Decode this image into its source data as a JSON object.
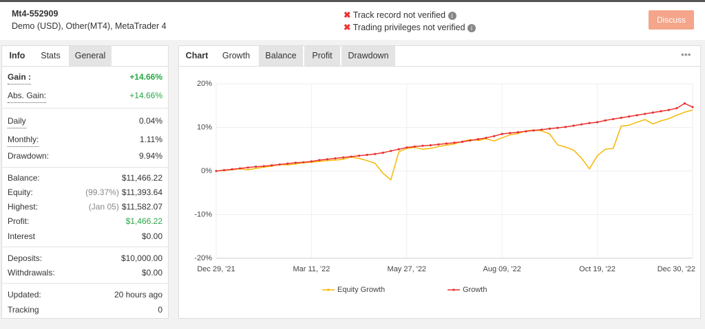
{
  "header": {
    "account": "Mt4-552909",
    "details": "Demo (USD), Other(MT4), MetaTrader 4",
    "warnings": [
      "Track record not verified",
      "Trading privileges not verified"
    ],
    "button": "Discuss"
  },
  "left_tabs": [
    "Info",
    "Stats",
    "General"
  ],
  "stats": {
    "gain": {
      "label": "Gain :",
      "value": "+14.66%"
    },
    "abs_gain": {
      "label": "Abs. Gain:",
      "value": "+14.66%"
    },
    "daily": {
      "label": "Daily",
      "value": "0.04%"
    },
    "monthly": {
      "label": "Monthly:",
      "value": "1.11%"
    },
    "drawdown": {
      "label": "Drawdown:",
      "value": "9.94%"
    },
    "balance": {
      "label": "Balance:",
      "value": "$11,466.22"
    },
    "equity": {
      "label": "Equity:",
      "note": "(99.37%)",
      "value": "$11,393.64"
    },
    "highest": {
      "label": "Highest:",
      "note": "(Jan 05)",
      "value": "$11,582.07"
    },
    "profit": {
      "label": "Profit:",
      "value": "$1,466.22"
    },
    "interest": {
      "label": "Interest",
      "value": "$0.00"
    },
    "deposits": {
      "label": "Deposits:",
      "value": "$10,000.00"
    },
    "withdrawals": {
      "label": "Withdrawals:",
      "value": "$0.00"
    },
    "updated": {
      "label": "Updated:",
      "value": "20 hours ago"
    },
    "tracking": {
      "label": "Tracking",
      "value": "0"
    }
  },
  "chart_tabs": [
    "Chart",
    "Growth",
    "Balance",
    "Profit",
    "Drawdown"
  ],
  "chart_data": {
    "type": "line",
    "grid": true,
    "categories": [
      "Dec 29, '21",
      null,
      null,
      null,
      null,
      null,
      null,
      null,
      null,
      null,
      null,
      null,
      "Mar 11, '22",
      null,
      null,
      null,
      null,
      null,
      null,
      null,
      null,
      null,
      null,
      null,
      "May 27, '22",
      null,
      null,
      null,
      null,
      null,
      null,
      null,
      null,
      null,
      null,
      null,
      "Aug 09, '22",
      null,
      null,
      null,
      null,
      null,
      null,
      null,
      null,
      null,
      null,
      null,
      "Oct 19, '22",
      null,
      null,
      null,
      null,
      null,
      null,
      null,
      null,
      null,
      null,
      null,
      "Dec 30, '22"
    ],
    "ylim": [
      -20,
      20
    ],
    "yticks": [
      {
        "value": -20,
        "label": "-20%"
      },
      {
        "value": -10,
        "label": "-10%"
      },
      {
        "value": 0,
        "label": "0%"
      },
      {
        "value": 10,
        "label": "10%"
      },
      {
        "value": 20,
        "label": "20%"
      }
    ],
    "series": [
      {
        "name": "Equity Growth",
        "color": "#f5b800",
        "values": [
          0,
          0.1,
          0.3,
          0.5,
          0.3,
          0.6,
          0.9,
          1.1,
          1.5,
          1.4,
          1.6,
          1.9,
          2.0,
          2.2,
          2.4,
          2.5,
          2.7,
          3.2,
          2.9,
          2.4,
          1.8,
          -0.5,
          -2.0,
          4.4,
          5.2,
          5.4,
          5.0,
          5.2,
          5.6,
          5.9,
          6.2,
          6.8,
          7.2,
          7.0,
          7.4,
          6.9,
          7.6,
          8.3,
          8.6,
          9.2,
          9.4,
          9.2,
          8.5,
          6.0,
          5.5,
          4.8,
          3.0,
          0.5,
          3.5,
          5.0,
          5.2,
          10.3,
          10.5,
          11.2,
          11.8,
          10.8,
          11.5,
          12.0,
          12.8,
          13.5,
          14.0
        ]
      },
      {
        "name": "Growth",
        "color": "#e8312f",
        "values": [
          0,
          0.2,
          0.4,
          0.6,
          0.8,
          1.0,
          1.1,
          1.3,
          1.5,
          1.7,
          1.9,
          2.0,
          2.2,
          2.5,
          2.7,
          2.9,
          3.1,
          3.3,
          3.5,
          3.7,
          3.9,
          4.2,
          4.6,
          5.0,
          5.4,
          5.6,
          5.8,
          5.9,
          6.1,
          6.3,
          6.5,
          6.7,
          7.0,
          7.3,
          7.6,
          8.0,
          8.5,
          8.7,
          8.9,
          9.1,
          9.3,
          9.5,
          9.7,
          9.9,
          10.1,
          10.4,
          10.7,
          11.0,
          11.2,
          11.6,
          11.9,
          12.2,
          12.5,
          12.8,
          13.1,
          13.4,
          13.7,
          14.0,
          14.4,
          15.5,
          14.66
        ]
      }
    ]
  }
}
